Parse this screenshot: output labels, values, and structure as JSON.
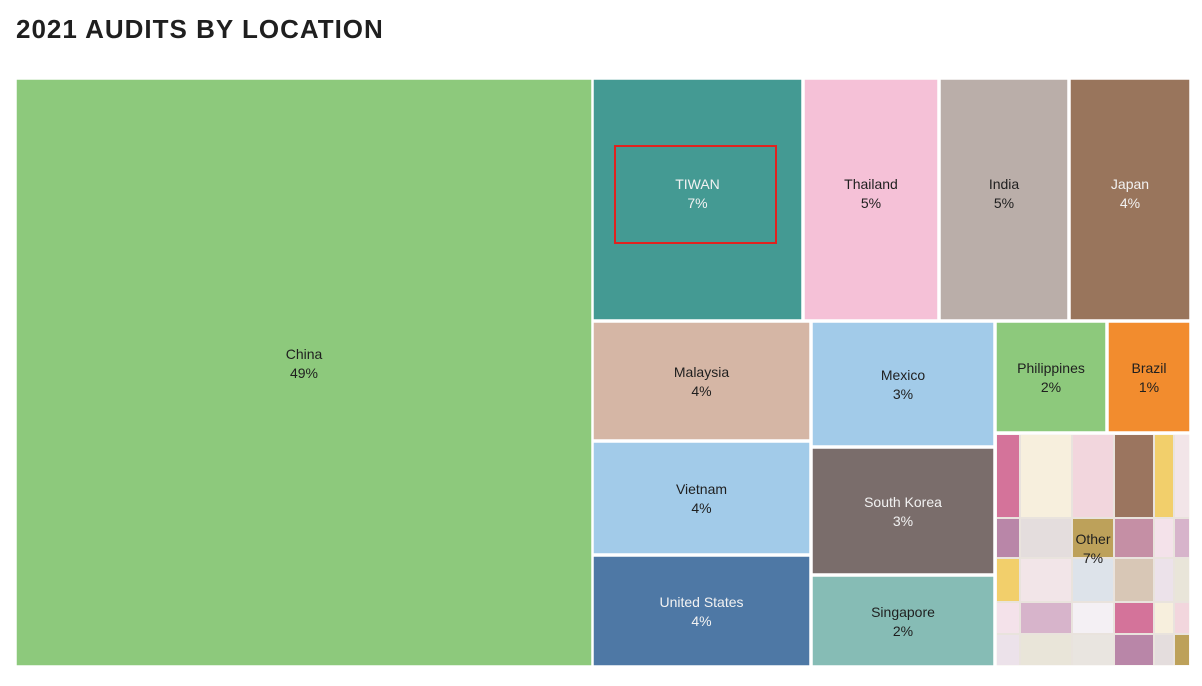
{
  "title": "2021 AUDITS BY LOCATION",
  "chart_data": {
    "type": "treemap",
    "title": "2021 AUDITS BY LOCATION",
    "unit": "%",
    "items": [
      {
        "name": "China",
        "value": 49,
        "label": "49%",
        "color": "#8dc97c"
      },
      {
        "name": "TIWAN",
        "value": 7,
        "label": "7%",
        "color": "#449a93",
        "highlighted": true
      },
      {
        "name": "Thailand",
        "value": 5,
        "label": "5%",
        "color": "#f5c1d7"
      },
      {
        "name": "India",
        "value": 5,
        "label": "5%",
        "color": "#baaea9"
      },
      {
        "name": "Japan",
        "value": 4,
        "label": "4%",
        "color": "#99755c"
      },
      {
        "name": "Malaysia",
        "value": 4,
        "label": "4%",
        "color": "#d5b6a5"
      },
      {
        "name": "Mexico",
        "value": 3,
        "label": "3%",
        "color": "#a2cbe9"
      },
      {
        "name": "Philippines",
        "value": 2,
        "label": "2%",
        "color": "#8dc97c"
      },
      {
        "name": "Brazil",
        "value": 1,
        "label": "1%",
        "color": "#f28c2e"
      },
      {
        "name": "Vietnam",
        "value": 4,
        "label": "4%",
        "color": "#a2cbe9"
      },
      {
        "name": "South Korea",
        "value": 3,
        "label": "3%",
        "color": "#7a6d6b"
      },
      {
        "name": "United States",
        "value": 4,
        "label": "4%",
        "color": "#4e78a5"
      },
      {
        "name": "Singapore",
        "value": 2,
        "label": "2%",
        "color": "#86bcb5"
      },
      {
        "name": "Other",
        "value": 7,
        "label": "7%",
        "color": "#e9e3dd"
      }
    ]
  }
}
